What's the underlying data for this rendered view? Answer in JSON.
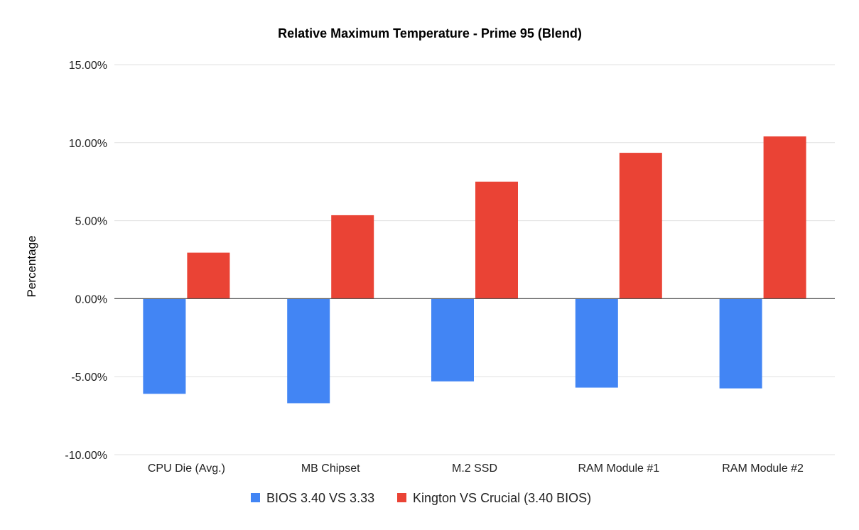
{
  "chart_data": {
    "type": "bar",
    "title": "Relative Maximum Temperature - Prime 95 (Blend)",
    "xlabel": "",
    "ylabel": "Percentage",
    "categories": [
      "CPU Die (Avg.)",
      "MB Chipset",
      "M.2 SSD",
      "RAM Module #1",
      "RAM Module #2"
    ],
    "series": [
      {
        "name": "BIOS 3.40 VS 3.33",
        "color": "#4285f4",
        "values": [
          -6.1,
          -6.7,
          -5.3,
          -5.7,
          -5.75
        ]
      },
      {
        "name": "Kington VS Crucial (3.40 BIOS)",
        "color": "#ea4335",
        "values": [
          2.95,
          5.35,
          7.5,
          9.35,
          10.4
        ]
      }
    ],
    "ylim": [
      -10,
      15
    ],
    "yticks": [
      15,
      10,
      5,
      0,
      -5,
      -10
    ],
    "ytick_labels": [
      "15.00%",
      "10.00%",
      "5.00%",
      "0.00%",
      "-5.00%",
      "-10.00%"
    ],
    "grid": true,
    "legend_position": "bottom"
  }
}
